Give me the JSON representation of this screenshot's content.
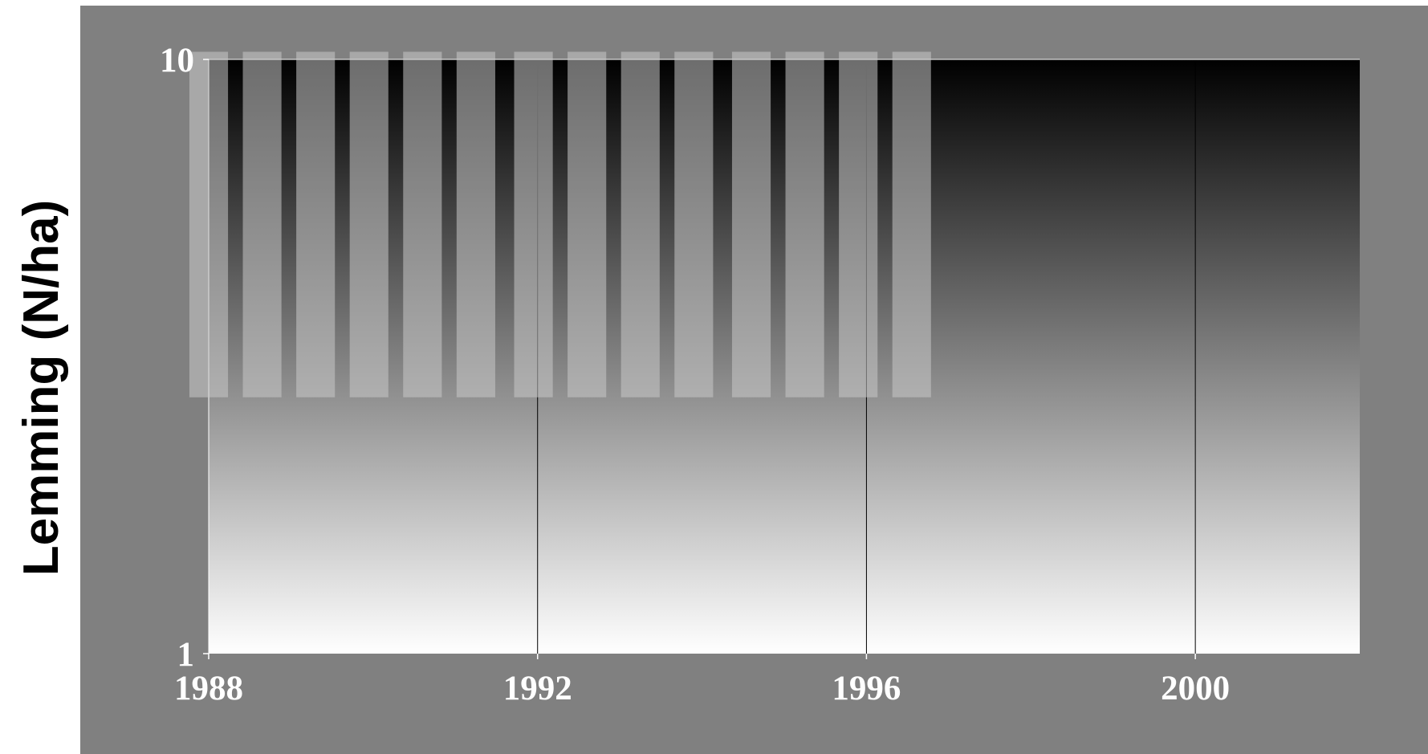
{
  "chart_data": {
    "type": "bar",
    "ylabel": "Lemming (N/ha)",
    "xlabel": "",
    "title": "",
    "x_axis": {
      "range": [
        1988,
        2002
      ],
      "ticks": [
        1988,
        1992,
        1996,
        2000
      ],
      "tick_labels": [
        "1988",
        "1992",
        "1996",
        "2000"
      ],
      "vertical_gridlines": true
    },
    "y_axis": {
      "scale": "log",
      "range": [
        1,
        10
      ],
      "ticks": [
        1,
        10
      ],
      "tick_labels": [
        "1",
        "10"
      ]
    },
    "bars": [
      {
        "x": 1988.0,
        "y_low": 2.7,
        "y_high": 10.3
      },
      {
        "x": 1988.65,
        "y_low": 2.7,
        "y_high": 10.3
      },
      {
        "x": 1989.3,
        "y_low": 2.7,
        "y_high": 10.3
      },
      {
        "x": 1989.95,
        "y_low": 2.7,
        "y_high": 10.3
      },
      {
        "x": 1990.6,
        "y_low": 2.7,
        "y_high": 10.3
      },
      {
        "x": 1991.25,
        "y_low": 2.7,
        "y_high": 10.3
      },
      {
        "x": 1991.95,
        "y_low": 2.7,
        "y_high": 10.3
      },
      {
        "x": 1992.6,
        "y_low": 2.7,
        "y_high": 10.3
      },
      {
        "x": 1993.25,
        "y_low": 2.7,
        "y_high": 10.3
      },
      {
        "x": 1993.9,
        "y_low": 2.7,
        "y_high": 10.3
      },
      {
        "x": 1994.6,
        "y_low": 2.7,
        "y_high": 10.3
      },
      {
        "x": 1995.25,
        "y_low": 2.7,
        "y_high": 10.3
      },
      {
        "x": 1995.9,
        "y_low": 2.7,
        "y_high": 10.3
      },
      {
        "x": 1996.55,
        "y_low": 2.7,
        "y_high": 10.3
      }
    ],
    "colors": {
      "outer_background": "#808080",
      "plot_gradient_top": "#000000",
      "plot_gradient_bottom": "#ffffff",
      "bar_fill": "#c8c8c8",
      "gridline": "#000000",
      "tick_label": "#ffffff",
      "ylabel": "#000000"
    },
    "legend": "none"
  }
}
